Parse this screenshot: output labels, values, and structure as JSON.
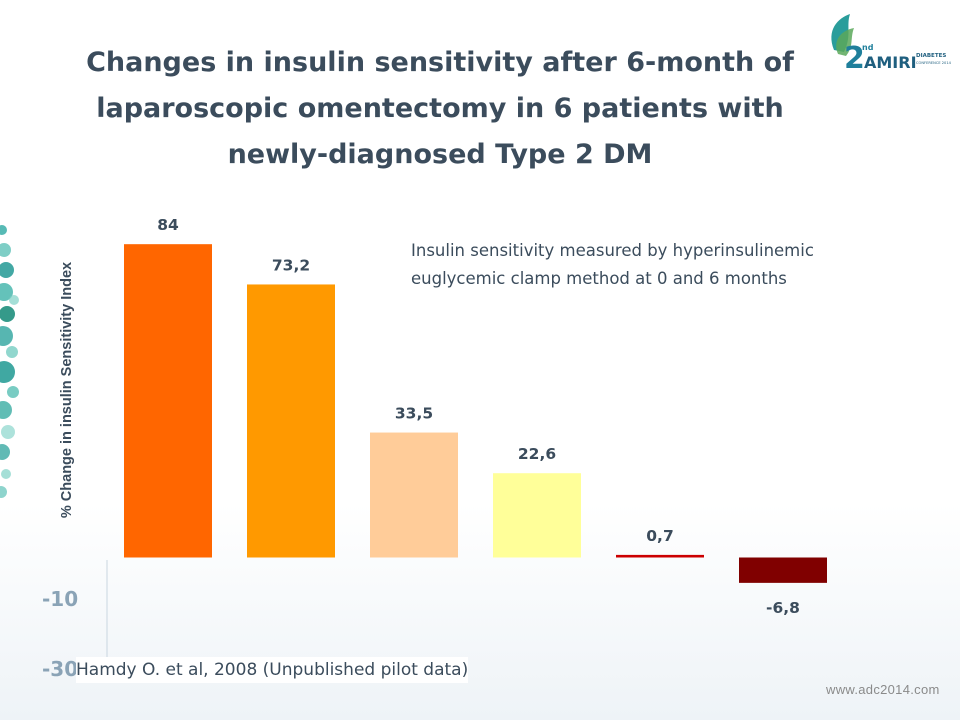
{
  "slide": {
    "title_lines": [
      "Changes in insulin sensitivity after 6-month of",
      "laparoscopic omentectomy in 6 patients with",
      "newly-diagnosed Type 2 DM"
    ],
    "note_lines": [
      "Insulin sensitivity measured by hyperinsulinemic",
      "euglycemic clamp method at 0 and 6 months"
    ],
    "citation": "Hamdy O. et al, 2008 (Unpublished pilot data)",
    "ghost_ticks": [
      "-10",
      "-30"
    ],
    "logo": {
      "number": "2",
      "superscript": "nd",
      "name": "AMIRI",
      "tag_top": "DIABETES",
      "tag_bottom": "CONFERENCE 2014"
    },
    "footer_url": "www.adc2014.com",
    "colors": {
      "title": "#3b4c5c",
      "accent_teal": "#2a9d9b",
      "accent_green": "#5aa85a"
    }
  },
  "chart_data": {
    "type": "bar",
    "ylabel": "% Change in insulin Sensitivity Index",
    "values": [
      84,
      73.2,
      33.5,
      22.6,
      0.7,
      -6.8
    ],
    "value_labels": [
      "84",
      "73,2",
      "33,5",
      "22,6",
      "0,7",
      "-6,8"
    ],
    "colors": [
      "#ff6600",
      "#ff9900",
      "#ffcc99",
      "#ffff99",
      "#cc0000",
      "#800000"
    ],
    "grid": false,
    "legend": "none"
  }
}
